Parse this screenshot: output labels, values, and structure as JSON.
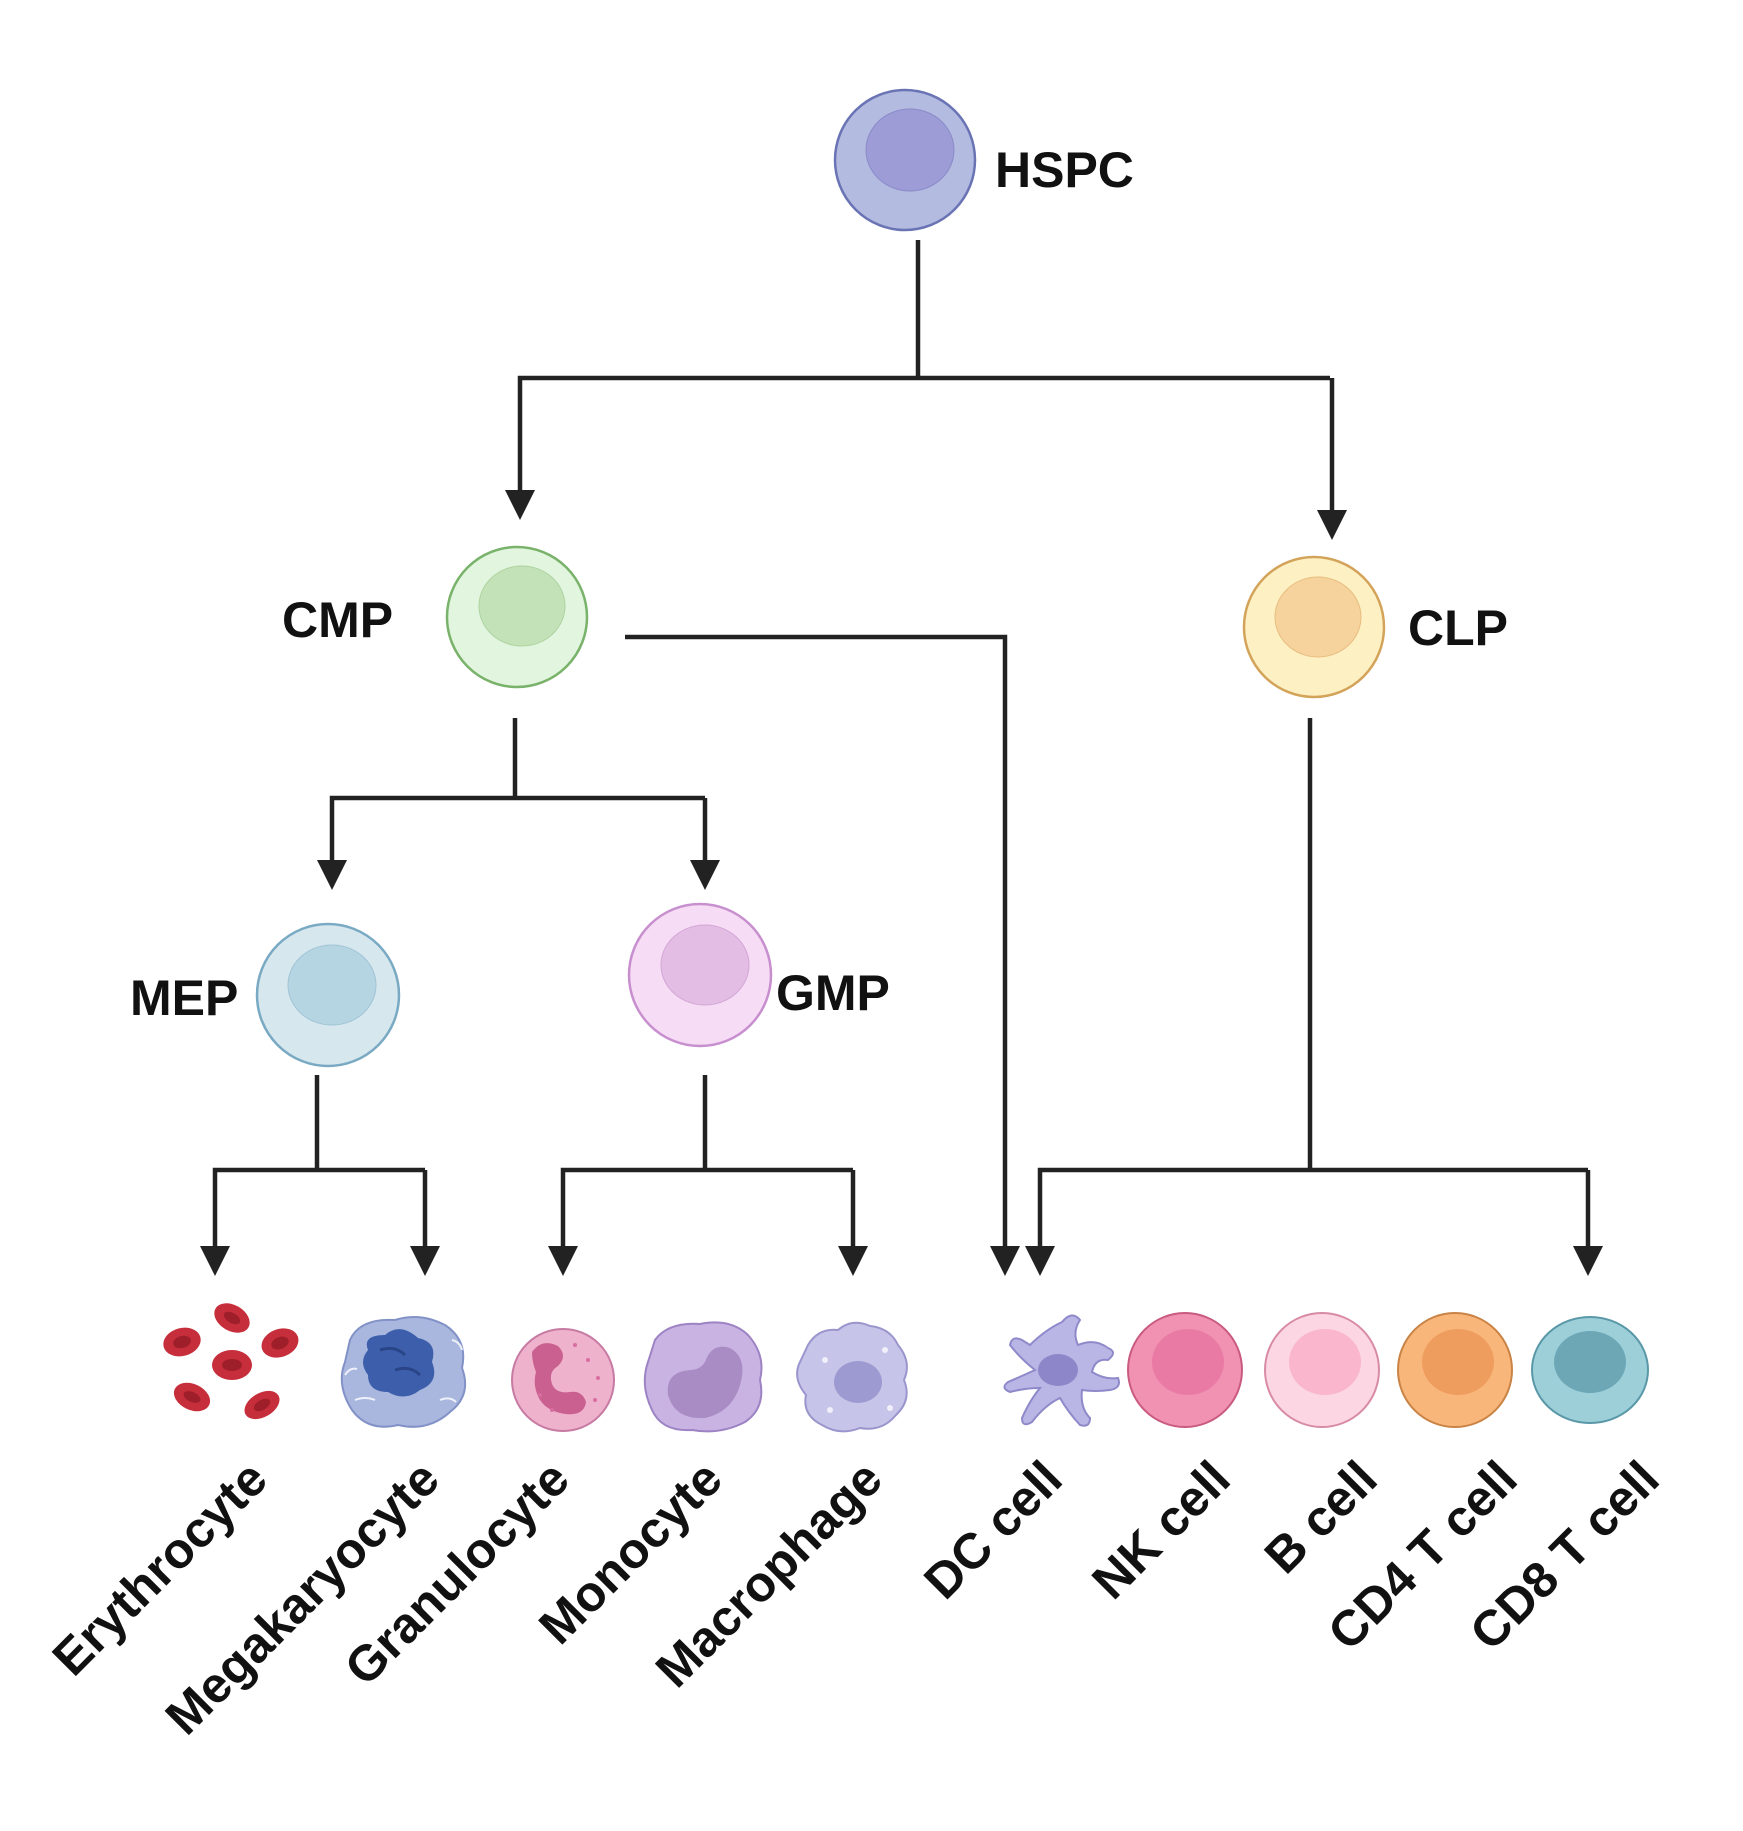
{
  "nodes": {
    "hspc": {
      "label": "HSPC",
      "membrane": "#b3bbe0",
      "nucleus": "#9d9cd6",
      "stroke": "#6a74b5"
    },
    "cmp": {
      "label": "CMP",
      "membrane": "#e2f5de",
      "nucleus": "#c3e2b8",
      "stroke": "#79b26a"
    },
    "clp": {
      "label": "CLP",
      "membrane": "#fdf1c4",
      "nucleus": "#f6d29c",
      "stroke": "#d3a35a"
    },
    "mep": {
      "label": "MEP",
      "membrane": "#d7e7ee",
      "nucleus": "#b6d5e2",
      "stroke": "#79a9c3"
    },
    "gmp": {
      "label": "GMP",
      "membrane": "#f6dcf5",
      "nucleus": "#e3bde4",
      "stroke": "#c88fcf"
    }
  },
  "cells": [
    {
      "id": "erythrocyte",
      "label": "Erythrocyte",
      "icon": "erythrocyte-icon",
      "color": "#c62e3b"
    },
    {
      "id": "megakaryocyte",
      "label": "Megakaryocyte",
      "icon": "megakaryocyte-icon",
      "color": "#a9b7df"
    },
    {
      "id": "granulocyte",
      "label": "Granulocyte",
      "icon": "granulocyte-icon",
      "color": "#efb2cd"
    },
    {
      "id": "monocyte",
      "label": "Monocyte",
      "icon": "monocyte-icon",
      "color": "#c9b3e3"
    },
    {
      "id": "macrophage",
      "label": "Macrophage",
      "icon": "macrophage-icon",
      "color": "#c7c4e9"
    },
    {
      "id": "dc",
      "label": "DC cell",
      "icon": "dc-cell-icon",
      "color": "#b9b6e6"
    },
    {
      "id": "nk",
      "label": "NK cell",
      "icon": "nk-cell-icon",
      "color": "#f292b2"
    },
    {
      "id": "b",
      "label": "B cell",
      "icon": "b-cell-icon",
      "color": "#fcd6e3"
    },
    {
      "id": "cd4",
      "label": "CD4 T cell",
      "icon": "cd4-t-cell-icon",
      "color": "#f9b67a"
    },
    {
      "id": "cd8",
      "label": "CD8 T cell",
      "icon": "cd8-t-cell-icon",
      "color": "#9dcfd9"
    }
  ],
  "edges": [
    {
      "from": "HSPC",
      "to": "CMP"
    },
    {
      "from": "HSPC",
      "to": "CLP"
    },
    {
      "from": "CMP",
      "to": "MEP"
    },
    {
      "from": "CMP",
      "to": "GMP"
    },
    {
      "from": "CMP",
      "to": "DC cell"
    },
    {
      "from": "MEP",
      "to": "Erythrocyte"
    },
    {
      "from": "MEP",
      "to": "Megakaryocyte"
    },
    {
      "from": "GMP",
      "to": "Granulocyte"
    },
    {
      "from": "GMP",
      "to": "Macrophage"
    },
    {
      "from": "CLP",
      "to": "DC cell"
    },
    {
      "from": "CLP",
      "to": "CD8 T cell"
    }
  ]
}
